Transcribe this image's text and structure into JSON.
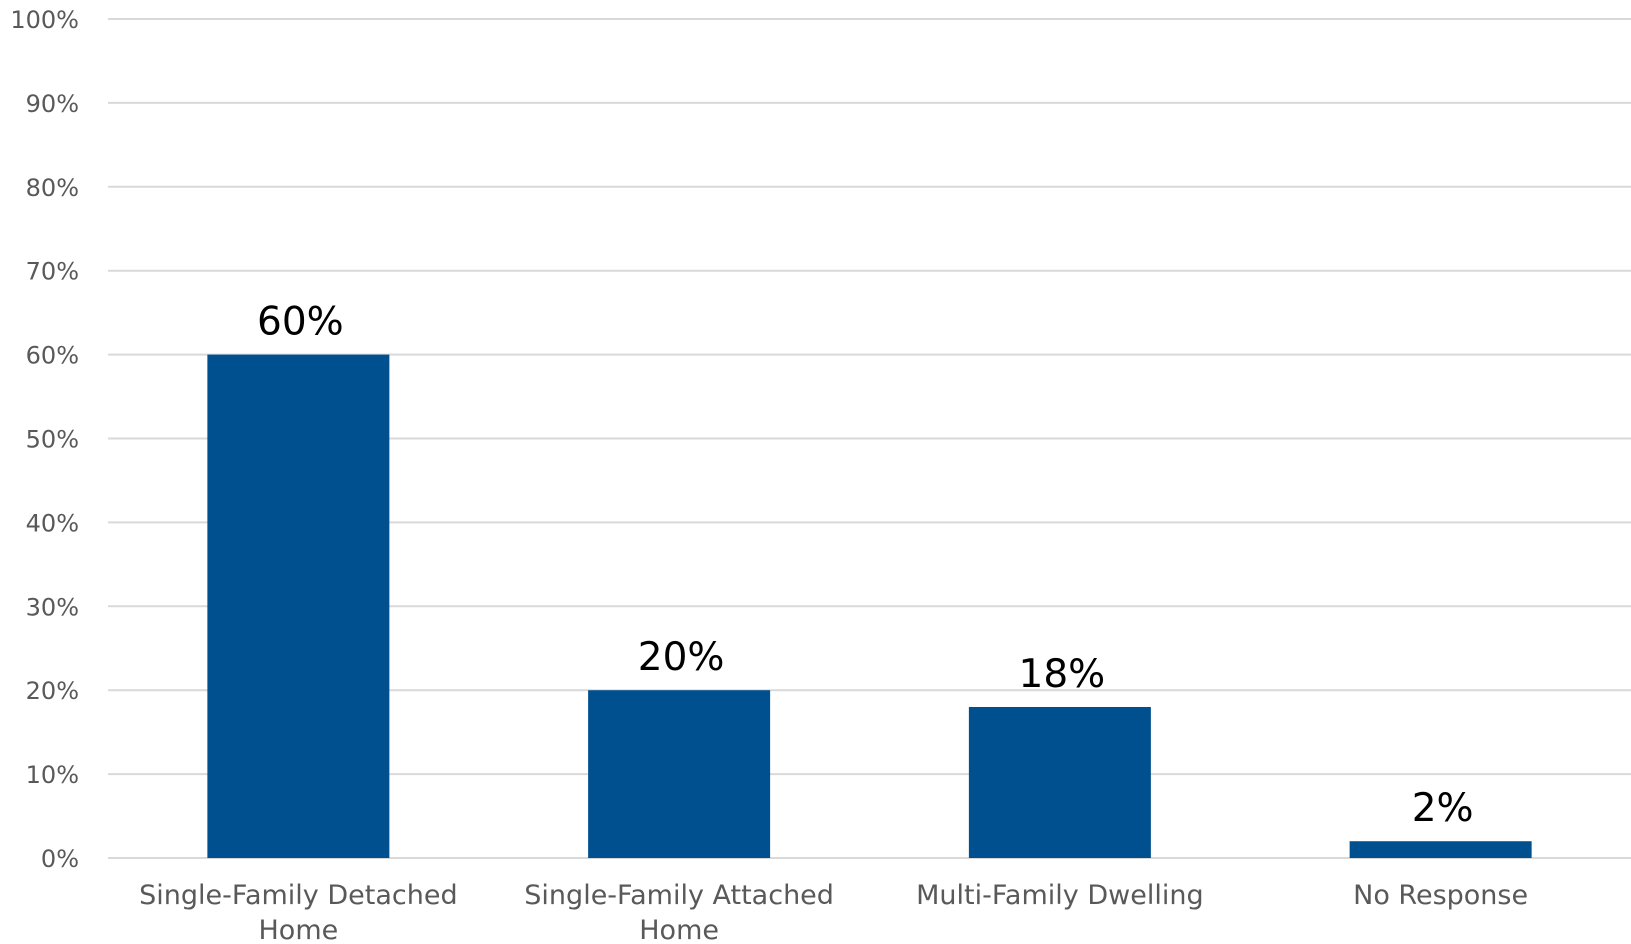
{
  "chart_data": {
    "type": "bar",
    "categories": [
      [
        "Single-Family Detached",
        "Home"
      ],
      [
        "Single-Family Attached",
        "Home"
      ],
      [
        "Multi-Family Dwelling"
      ],
      [
        "No Response"
      ]
    ],
    "values": [
      60,
      20,
      18,
      2
    ],
    "data_labels": [
      "60%",
      "20%",
      "18%",
      "2%"
    ],
    "yticks": [
      "0%",
      "10%",
      "20%",
      "30%",
      "40%",
      "50%",
      "60%",
      "70%",
      "80%",
      "90%",
      "100%"
    ],
    "ylim": [
      0,
      100
    ],
    "grid": true,
    "bar_color": "#00508f",
    "title": "",
    "xlabel": "",
    "ylabel": ""
  }
}
